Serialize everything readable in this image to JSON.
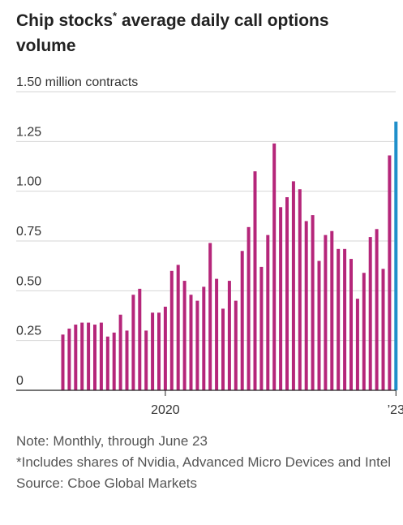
{
  "title": {
    "main": "Chip stocks",
    "asterisk": "*",
    "rest": "average daily call options volume"
  },
  "chart_data": {
    "type": "bar",
    "title": "Chip stocks* average daily call options volume",
    "ylabel": "million contracts",
    "ylim": [
      0,
      1.5
    ],
    "yticks": [
      0,
      0.25,
      0.5,
      0.75,
      1.0,
      1.25,
      1.5
    ],
    "ytick_labels": [
      "0",
      "0.25",
      "0.50",
      "0.75",
      "1.00",
      "1.25",
      "1.50 million contracts"
    ],
    "xtick_labels": [
      {
        "label": "2020",
        "index": 16
      },
      {
        "label": "’23",
        "index": 52
      }
    ],
    "grid": true,
    "highlight_color": "#1f8fca",
    "bar_color": "#b5267a",
    "series": [
      {
        "values": [
          0.28,
          0.31,
          0.33,
          0.34,
          0.34,
          0.33,
          0.34,
          0.27,
          0.29,
          0.38,
          0.3,
          0.48,
          0.51,
          0.3,
          0.39,
          0.39,
          0.42,
          0.6,
          0.63,
          0.55,
          0.48,
          0.45,
          0.52,
          0.74,
          0.56,
          0.41,
          0.55,
          0.45,
          0.7,
          0.82,
          1.1,
          0.62,
          0.78,
          1.24,
          0.92,
          0.97,
          1.05,
          1.01,
          0.85,
          0.88,
          0.65,
          0.78,
          0.8,
          0.71,
          0.71,
          0.66,
          0.46,
          0.59,
          0.77,
          0.81,
          0.61,
          1.18,
          1.35
        ],
        "highlight_last": true
      }
    ]
  },
  "notes": {
    "note": "Note: Monthly, through June 23",
    "footnote": "*Includes shares of Nvidia, Advanced Micro Devices and Intel",
    "source": "Source: Cboe Global Markets"
  }
}
